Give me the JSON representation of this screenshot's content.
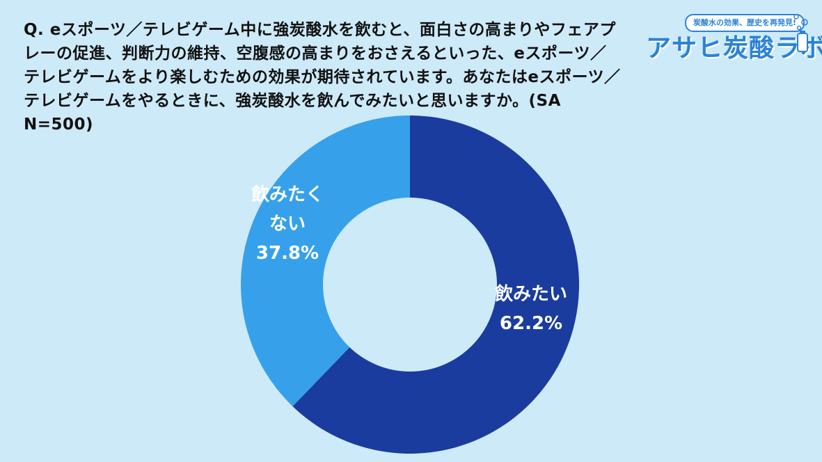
{
  "question": "Q. eスポーツ／テレビゲーム中に強炭酸水を飲むと、面白さの高まりやフェアプレーの促進、判断力の維持、空腹感の高まりをおさえるといった、eスポーツ／テレビゲームをより楽しむための効果が期待されています。あなたはeスポーツ／テレビゲームをやるときに、強炭酸水を飲んでみたいと思いますか。(SA N=500)",
  "logo": {
    "tagline": "炭酸水の効果、歴史を再発見!",
    "title": "アサヒ炭酸ラボ"
  },
  "colors": {
    "background": "#cdeaf9",
    "dark_blue": "#1a3c9e",
    "light_blue": "#36a1ea",
    "logo_blue": "#2a82d6"
  },
  "chart_data": {
    "type": "pie",
    "donut": true,
    "title": "",
    "slices": [
      {
        "label_lines": [
          "飲みたい"
        ],
        "value_text": "62.2%",
        "value": 62.2,
        "color": "#1a3c9e"
      },
      {
        "label_lines": [
          "飲みたく",
          "ない"
        ],
        "value_text": "37.8%",
        "value": 37.8,
        "color": "#36a1ea"
      }
    ]
  }
}
